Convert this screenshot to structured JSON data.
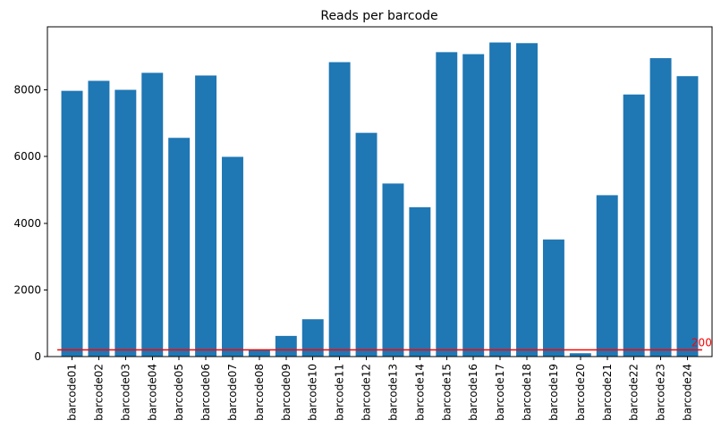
{
  "chart_data": {
    "type": "bar",
    "title": "Reads per barcode",
    "xlabel": "",
    "ylabel": "",
    "categories": [
      "barcode01",
      "barcode02",
      "barcode03",
      "barcode04",
      "barcode05",
      "barcode06",
      "barcode07",
      "barcode08",
      "barcode09",
      "barcode10",
      "barcode11",
      "barcode12",
      "barcode13",
      "barcode14",
      "barcode15",
      "barcode16",
      "barcode17",
      "barcode18",
      "barcode19",
      "barcode20",
      "barcode21",
      "barcode22",
      "barcode23",
      "barcode24"
    ],
    "values": [
      7970,
      8270,
      8000,
      8510,
      6560,
      8430,
      5990,
      200,
      620,
      1120,
      8830,
      6710,
      5190,
      4480,
      9130,
      9070,
      9420,
      9400,
      3510,
      100,
      4840,
      7860,
      8950,
      8410
    ],
    "ylim": [
      0,
      9890
    ],
    "yticks": [
      0,
      2000,
      4000,
      6000,
      8000
    ],
    "ytick_labels": [
      "0",
      "2000",
      "4000",
      "6000",
      "8000"
    ],
    "bar_color": "#1f77b4",
    "grid": false,
    "legend": "none",
    "threshold": {
      "value": 200,
      "label": "200",
      "color": "#ff0000"
    }
  }
}
